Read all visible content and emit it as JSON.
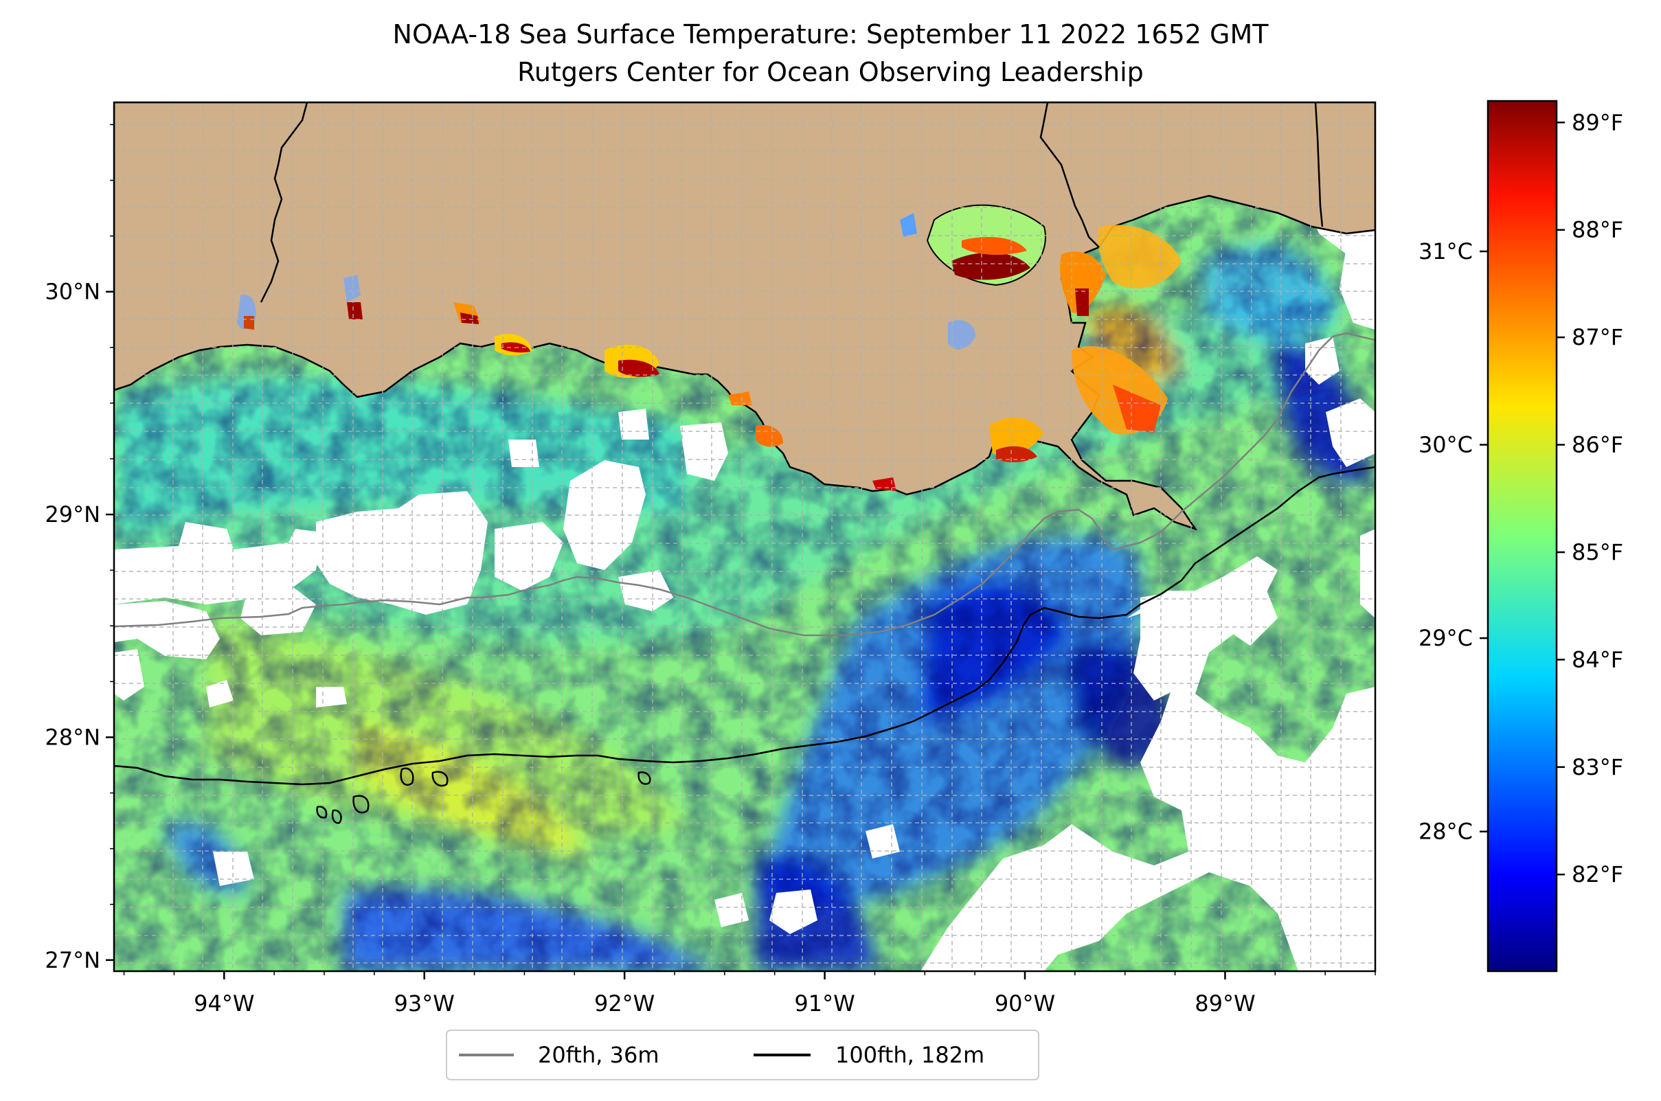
{
  "title": {
    "line1": "NOAA-18 Sea Surface Temperature: September 11 2022 1652 GMT",
    "line2": "Rutgers Center for Ocean Observing Leadership"
  },
  "map": {
    "lon_range": [
      -94.55,
      -88.25
    ],
    "lat_range": [
      26.95,
      30.85
    ],
    "grid": true,
    "land_color": "#cfb08a",
    "no_data_color": "#ffffff",
    "lon_ticks": [
      {
        "value": -94,
        "label": "94°W"
      },
      {
        "value": -93,
        "label": "93°W"
      },
      {
        "value": -92,
        "label": "92°W"
      },
      {
        "value": -91,
        "label": "91°W"
      },
      {
        "value": -90,
        "label": "90°W"
      },
      {
        "value": -89,
        "label": "89°W"
      }
    ],
    "lat_ticks": [
      {
        "value": 27,
        "label": "27°N"
      },
      {
        "value": 28,
        "label": "28°N"
      },
      {
        "value": 29,
        "label": "29°N"
      },
      {
        "value": 30,
        "label": "30°N"
      }
    ]
  },
  "legend": {
    "placement": "bottom-center",
    "items": [
      {
        "label": "20fth, 36m",
        "color": "#808080"
      },
      {
        "label": "100fth, 182m",
        "color": "#000000"
      }
    ]
  },
  "colorbar": {
    "colormap": "jet",
    "range_f": [
      81.1,
      89.2
    ],
    "fahrenheit_ticks": [
      {
        "value": 82,
        "label": "82°F"
      },
      {
        "value": 83,
        "label": "83°F"
      },
      {
        "value": 84,
        "label": "84°F"
      },
      {
        "value": 85,
        "label": "85°F"
      },
      {
        "value": 86,
        "label": "86°F"
      },
      {
        "value": 87,
        "label": "87°F"
      },
      {
        "value": 88,
        "label": "88°F"
      },
      {
        "value": 89,
        "label": "89°F"
      }
    ],
    "celsius_ticks": [
      {
        "value": 28,
        "label": "28°C"
      },
      {
        "value": 29,
        "label": "29°C"
      },
      {
        "value": 30,
        "label": "30°C"
      },
      {
        "value": 31,
        "label": "31°C"
      }
    ]
  }
}
